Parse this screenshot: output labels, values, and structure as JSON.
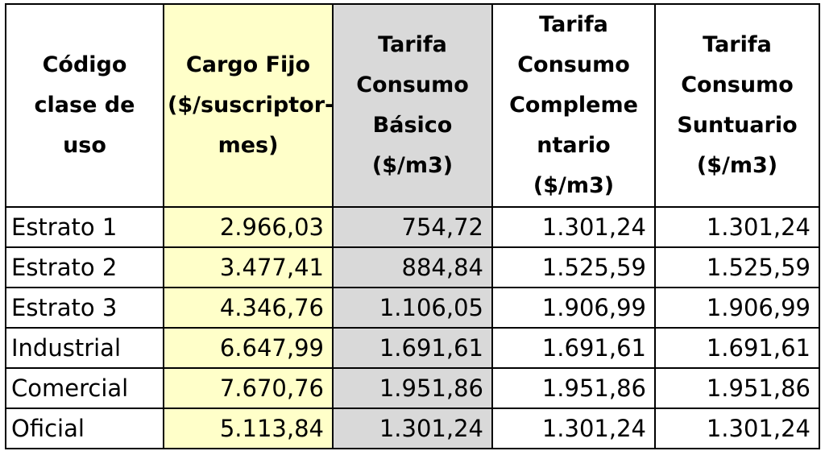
{
  "table": {
    "headers": {
      "code": [
        "Código",
        "clase de uso"
      ],
      "cargo_fijo": [
        "Cargo Fijo",
        "($/suscriptor-",
        "mes)"
      ],
      "basico": [
        "Tarifa",
        "Consumo",
        "Básico",
        "($/m3)"
      ],
      "complementario": [
        "Tarifa",
        "Consumo",
        "Compleme",
        "ntario",
        "($/m3)"
      ],
      "suntuario": [
        "Tarifa",
        "Consumo",
        "Suntuario",
        "($/m3)"
      ]
    },
    "rows": [
      {
        "label": "Estrato 1",
        "cargo_fijo": "2.966,03",
        "basico": "754,72",
        "complementario": "1.301,24",
        "suntuario": "1.301,24"
      },
      {
        "label": "Estrato 2",
        "cargo_fijo": "3.477,41",
        "basico": "884,84",
        "complementario": "1.525,59",
        "suntuario": "1.525,59"
      },
      {
        "label": "Estrato 3",
        "cargo_fijo": "4.346,76",
        "basico": "1.106,05",
        "complementario": "1.906,99",
        "suntuario": "1.906,99"
      },
      {
        "label": "Industrial",
        "cargo_fijo": "6.647,99",
        "basico": "1.691,61",
        "complementario": "1.691,61",
        "suntuario": "1.691,61"
      },
      {
        "label": "Comercial",
        "cargo_fijo": "7.670,76",
        "basico": "1.951,86",
        "complementario": "1.951,86",
        "suntuario": "1.951,86"
      },
      {
        "label": "Oficial",
        "cargo_fijo": "5.113,84",
        "basico": "1.301,24",
        "complementario": "1.301,24",
        "suntuario": "1.301,24"
      }
    ],
    "colors": {
      "cargo_fijo_bg": "#ffffc9",
      "basico_bg": "#d9d9d9",
      "border": "#000000"
    }
  }
}
